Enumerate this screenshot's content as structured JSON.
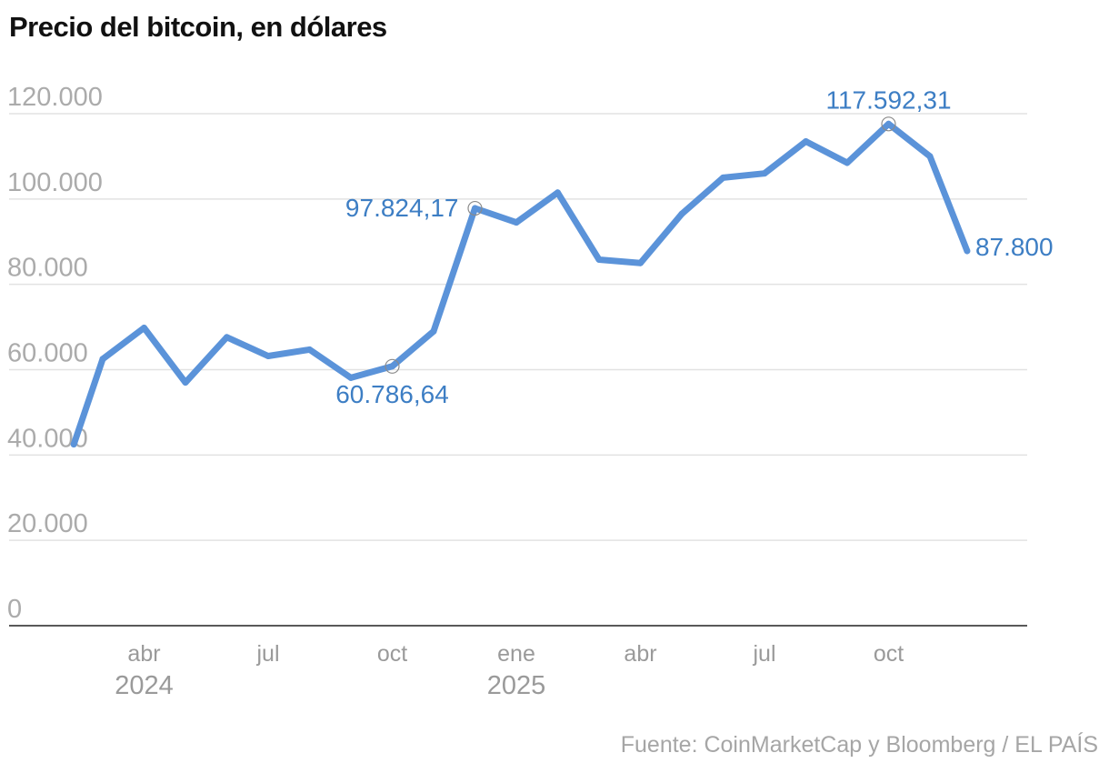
{
  "colors": {
    "line": "#5b93d9",
    "label": "#3d7ec4",
    "grid": "#e2e2e2",
    "axis": "#222222"
  },
  "chart_data": {
    "type": "line",
    "title": "Precio del bitcoin, en dólares",
    "source": "Fuente: CoinMarketCap y Bloomberg / EL PAÍS",
    "ylim": [
      0,
      120000
    ],
    "yticks": [
      0,
      20000,
      40000,
      60000,
      80000,
      100000,
      120000
    ],
    "ytick_labels": [
      "0",
      "20.000",
      "40.000",
      "60.000",
      "80.000",
      "100.000",
      "120.000"
    ],
    "xticks": [
      {
        "month_index": 3,
        "label": "abr",
        "year": "2024"
      },
      {
        "month_index": 6,
        "label": "jul",
        "year": ""
      },
      {
        "month_index": 9,
        "label": "oct",
        "year": ""
      },
      {
        "month_index": 12,
        "label": "ene",
        "year": "2025"
      },
      {
        "month_index": 15,
        "label": "abr",
        "year": ""
      },
      {
        "month_index": 18,
        "label": "jul",
        "year": ""
      },
      {
        "month_index": 21,
        "label": "oct",
        "year": ""
      }
    ],
    "series": [
      {
        "name": "Precio del bitcoin",
        "x": [
          1.3,
          2,
          3,
          4,
          5,
          6,
          7,
          8,
          9,
          10,
          11,
          12,
          13,
          14,
          15,
          16,
          17,
          18,
          19,
          20,
          21,
          22,
          22.9
        ],
        "values": [
          42500,
          62500,
          69800,
          57000,
          67600,
          63200,
          64700,
          58100,
          60786.64,
          69000,
          97824.17,
          94500,
          101500,
          85800,
          85000,
          96500,
          105000,
          106000,
          113500,
          108500,
          117592.31,
          110000,
          87800
        ]
      }
    ],
    "annotations": [
      {
        "point_index": 8,
        "label": "60.786,64",
        "marker": true,
        "position": "below"
      },
      {
        "point_index": 10,
        "label": "97.824,17",
        "marker": true,
        "position": "left"
      },
      {
        "point_index": 20,
        "label": "117.592,31",
        "marker": true,
        "position": "above"
      },
      {
        "point_index": 22,
        "label": "87.800",
        "marker": false,
        "position": "right"
      }
    ]
  }
}
